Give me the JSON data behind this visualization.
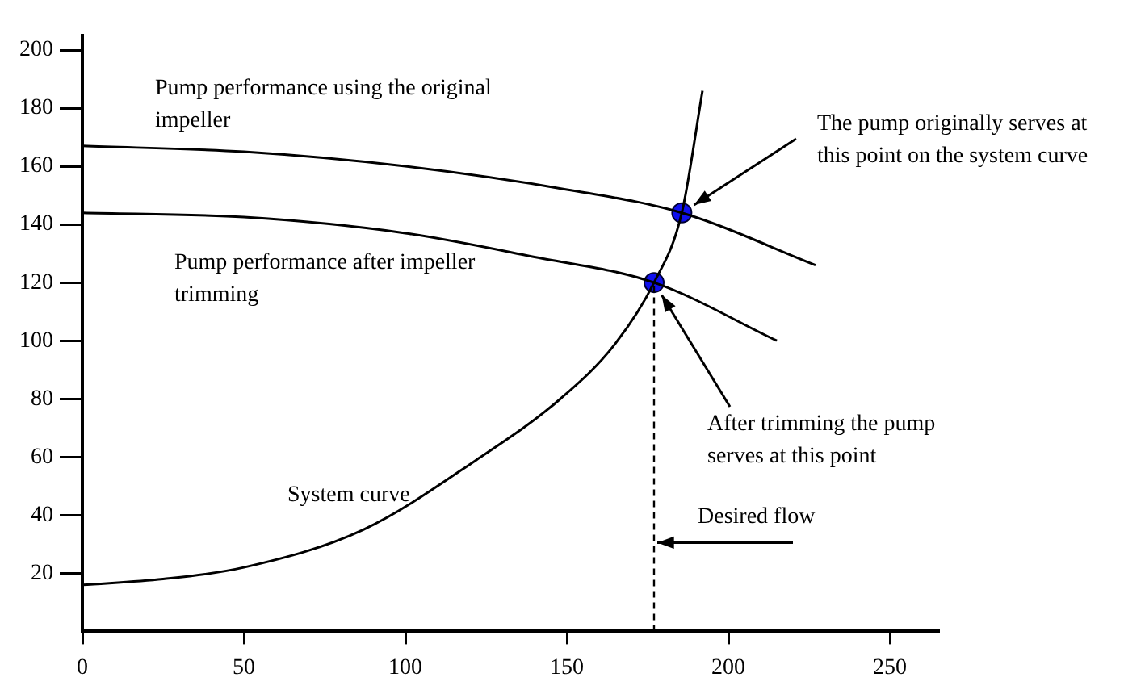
{
  "chart_data": {
    "type": "line",
    "xlim": [
      0,
      265
    ],
    "ylim": [
      0,
      205
    ],
    "xticks": [
      0,
      50,
      100,
      150,
      200,
      250
    ],
    "yticks": [
      20,
      40,
      60,
      80,
      100,
      120,
      140,
      160,
      180,
      200
    ],
    "grid": false,
    "legend": false,
    "marker": "none",
    "line_style": "solid",
    "series": [
      {
        "name": "Pump performance using the original impeller",
        "color": "#000000",
        "x": [
          0,
          50,
          100,
          150,
          185.6,
          227
        ],
        "values": [
          167,
          165,
          160,
          152,
          144,
          126
        ]
      },
      {
        "name": "Pump performance after impeller trimming",
        "color": "#000000",
        "x": [
          0,
          50,
          100,
          139,
          177,
          215
        ],
        "values": [
          144,
          142.5,
          137,
          129,
          120,
          100
        ]
      },
      {
        "name": "System curve",
        "color": "#000000",
        "x": [
          0,
          25,
          50,
          87,
          122,
          148,
          165,
          177,
          185.6,
          192
        ],
        "values": [
          16,
          18,
          22,
          35,
          59,
          80,
          99,
          120,
          144,
          186
        ]
      },
      {
        "type": "scatter",
        "marker": "circle",
        "color": "#1010ee",
        "x": [
          185.6,
          177
        ],
        "values": [
          144,
          120
        ]
      }
    ],
    "ref_lines": [
      {
        "axis": "x",
        "value": 177,
        "label": "Desired flow",
        "line_style": "dashed",
        "color": "#000000"
      }
    ],
    "annotations": [
      {
        "text": "The pump originally serves at this point on the system curve",
        "x": 185.6,
        "y": 144
      },
      {
        "text": "After trimming the pump serves at this point",
        "x": 177,
        "y": 120
      }
    ]
  }
}
